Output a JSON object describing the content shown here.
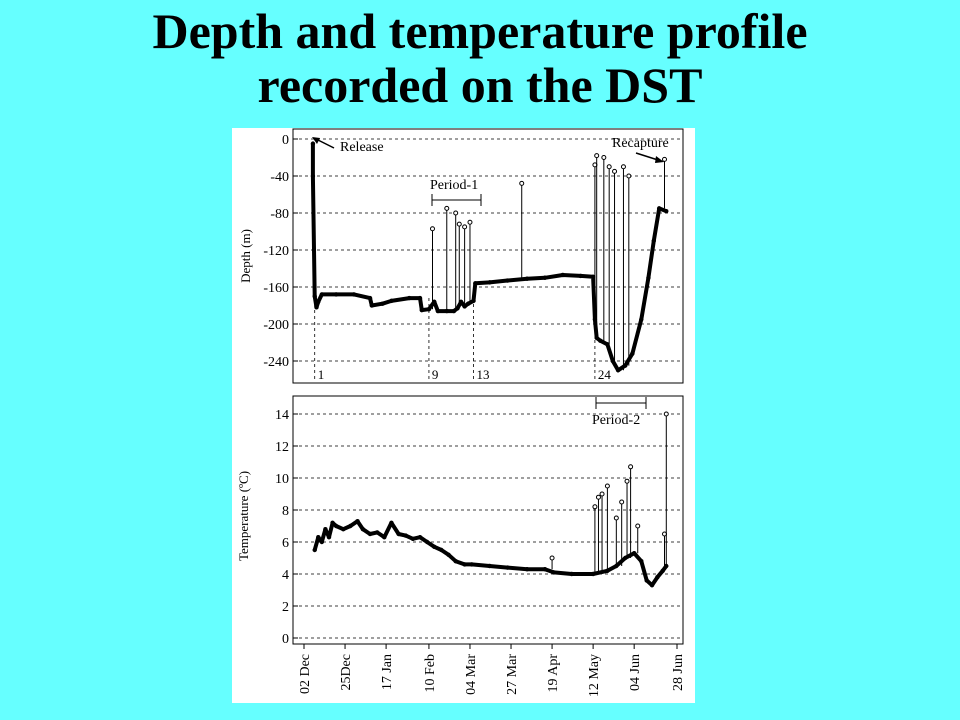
{
  "slide": {
    "title_line1": "Depth and temperature profile",
    "title_line2": "recorded on the DST"
  },
  "chart_data": [
    {
      "type": "line",
      "ylabel": "Depth (m)",
      "ylim": [
        -260,
        0
      ],
      "yticks": [
        "0",
        "-40",
        "-80",
        "-120",
        "-160",
        "-200",
        "-240"
      ],
      "ytick_values": [
        0,
        -40,
        -80,
        -120,
        -160,
        -200,
        -240
      ],
      "grid": true,
      "annotations": {
        "release": "Release",
        "recapture": "Recapture",
        "period1": "Period-1"
      },
      "markers": [
        {
          "label": "1",
          "x": "2003-12-08"
        },
        {
          "label": "9",
          "x": "2004-02-10"
        },
        {
          "label": "13",
          "x": "2004-03-06"
        },
        {
          "label": "24",
          "x": "2004-05-13"
        }
      ],
      "series": [
        {
          "points": [
            [
              "2003-12-07",
              -5
            ],
            [
              "2003-12-07",
              -40
            ],
            [
              "2003-12-08",
              -170
            ],
            [
              "2003-12-09",
              -182
            ],
            [
              "2003-12-10",
              -176
            ],
            [
              "2003-12-12",
              -168
            ],
            [
              "2003-12-20",
              -168
            ],
            [
              "2003-12-30",
              -168
            ],
            [
              "2004-01-08",
              -172
            ],
            [
              "2004-01-09",
              -180
            ],
            [
              "2004-01-15",
              -178
            ],
            [
              "2004-01-20",
              -175
            ],
            [
              "2004-01-30",
              -172
            ],
            [
              "2004-02-05",
              -172
            ],
            [
              "2004-02-06",
              -185
            ],
            [
              "2004-02-10",
              -184
            ],
            [
              "2004-02-13",
              -176
            ],
            [
              "2004-02-15",
              -186
            ],
            [
              "2004-02-20",
              -186
            ],
            [
              "2004-02-24",
              -186
            ],
            [
              "2004-02-26",
              -183
            ],
            [
              "2004-02-28",
              -176
            ],
            [
              "2004-03-01",
              -181
            ],
            [
              "2004-03-03",
              -178
            ],
            [
              "2004-03-06",
              -175
            ],
            [
              "2004-03-07",
              -156
            ],
            [
              "2004-03-15",
              -155
            ],
            [
              "2004-03-25",
              -153
            ],
            [
              "2004-04-05",
              -151
            ],
            [
              "2004-04-15",
              -150
            ],
            [
              "2004-04-25",
              -147
            ],
            [
              "2004-05-05",
              -148
            ],
            [
              "2004-05-12",
              -149
            ],
            [
              "2004-05-13",
              -195
            ],
            [
              "2004-05-14",
              -215
            ],
            [
              "2004-05-16",
              -218
            ],
            [
              "2004-05-20",
              -222
            ],
            [
              "2004-05-23",
              -240
            ],
            [
              "2004-05-26",
              -250
            ],
            [
              "2004-05-30",
              -245
            ],
            [
              "2004-06-03",
              -232
            ],
            [
              "2004-06-08",
              -195
            ],
            [
              "2004-06-12",
              -150
            ],
            [
              "2004-06-15",
              -110
            ],
            [
              "2004-06-18",
              -75
            ],
            [
              "2004-06-22",
              -78
            ]
          ]
        }
      ],
      "spikes": [
        {
          "x": "2004-02-12",
          "top": -97
        },
        {
          "x": "2004-02-20",
          "top": -75
        },
        {
          "x": "2004-02-25",
          "top": -80
        },
        {
          "x": "2004-02-27",
          "top": -92
        },
        {
          "x": "2004-03-01",
          "top": -95
        },
        {
          "x": "2004-03-04",
          "top": -90
        },
        {
          "x": "2004-04-02",
          "top": -48
        },
        {
          "x": "2004-05-13",
          "top": -28
        },
        {
          "x": "2004-05-14",
          "top": -18
        },
        {
          "x": "2004-05-18",
          "top": -20
        },
        {
          "x": "2004-05-21",
          "top": -30
        },
        {
          "x": "2004-05-24",
          "top": -35
        },
        {
          "x": "2004-05-29",
          "top": -30
        },
        {
          "x": "2004-06-01",
          "top": -40
        },
        {
          "x": "2004-06-21",
          "top": -22
        }
      ]
    },
    {
      "type": "line",
      "ylabel": "Temperature (ºC)",
      "ylim": [
        0,
        15
      ],
      "yticks": [
        "0",
        "2",
        "4",
        "6",
        "8",
        "10",
        "12",
        "14"
      ],
      "ytick_values": [
        0,
        2,
        4,
        6,
        8,
        10,
        12,
        14
      ],
      "xticks": [
        "02 Dec",
        "25Dec",
        "17 Jan",
        "10 Feb",
        "04 Mar",
        "27 Mar",
        "19 Apr",
        "12 May",
        "04 Jun",
        "28 Jun"
      ],
      "xtick_dates": [
        "2003-12-02",
        "2003-12-25",
        "2004-01-17",
        "2004-02-10",
        "2004-03-04",
        "2004-03-27",
        "2004-04-19",
        "2004-05-12",
        "2004-06-04",
        "2004-06-28"
      ],
      "grid": true,
      "annotations": {
        "period2": "Period-2"
      },
      "series": [
        {
          "points": [
            [
              "2003-12-08",
              5.5
            ],
            [
              "2003-12-10",
              6.3
            ],
            [
              "2003-12-12",
              6.0
            ],
            [
              "2003-12-14",
              6.8
            ],
            [
              "2003-12-16",
              6.3
            ],
            [
              "2003-12-18",
              7.2
            ],
            [
              "2003-12-20",
              7.0
            ],
            [
              "2003-12-24",
              6.8
            ],
            [
              "2003-12-28",
              7.0
            ],
            [
              "2004-01-01",
              7.3
            ],
            [
              "2004-01-04",
              6.8
            ],
            [
              "2004-01-08",
              6.5
            ],
            [
              "2004-01-12",
              6.6
            ],
            [
              "2004-01-16",
              6.3
            ],
            [
              "2004-01-20",
              7.2
            ],
            [
              "2004-01-24",
              6.5
            ],
            [
              "2004-01-28",
              6.4
            ],
            [
              "2004-02-01",
              6.2
            ],
            [
              "2004-02-05",
              6.3
            ],
            [
              "2004-02-09",
              6.0
            ],
            [
              "2004-02-13",
              5.7
            ],
            [
              "2004-02-17",
              5.5
            ],
            [
              "2004-02-21",
              5.2
            ],
            [
              "2004-02-25",
              4.8
            ],
            [
              "2004-03-01",
              4.6
            ],
            [
              "2004-03-05",
              4.6
            ],
            [
              "2004-03-15",
              4.5
            ],
            [
              "2004-03-25",
              4.4
            ],
            [
              "2004-04-05",
              4.3
            ],
            [
              "2004-04-15",
              4.3
            ],
            [
              "2004-04-20",
              4.1
            ],
            [
              "2004-04-30",
              4.0
            ],
            [
              "2004-05-12",
              4.0
            ],
            [
              "2004-05-20",
              4.2
            ],
            [
              "2004-05-25",
              4.5
            ],
            [
              "2004-05-30",
              5.0
            ],
            [
              "2004-06-04",
              5.3
            ],
            [
              "2004-06-08",
              4.8
            ],
            [
              "2004-06-11",
              3.6
            ],
            [
              "2004-06-14",
              3.3
            ],
            [
              "2004-06-17",
              3.8
            ],
            [
              "2004-06-20",
              4.2
            ],
            [
              "2004-06-22",
              4.5
            ]
          ]
        }
      ],
      "spikes": [
        {
          "x": "2004-04-19",
          "top": 5.0
        },
        {
          "x": "2004-05-13",
          "top": 8.2
        },
        {
          "x": "2004-05-15",
          "top": 8.8
        },
        {
          "x": "2004-05-17",
          "top": 9.0
        },
        {
          "x": "2004-05-20",
          "top": 9.5
        },
        {
          "x": "2004-05-25",
          "top": 7.5
        },
        {
          "x": "2004-05-28",
          "top": 8.5
        },
        {
          "x": "2004-05-31",
          "top": 9.8
        },
        {
          "x": "2004-06-02",
          "top": 10.7
        },
        {
          "x": "2004-06-06",
          "top": 7.0
        },
        {
          "x": "2004-06-21",
          "top": 6.5
        },
        {
          "x": "2004-06-22",
          "top": 14.0
        }
      ]
    }
  ]
}
